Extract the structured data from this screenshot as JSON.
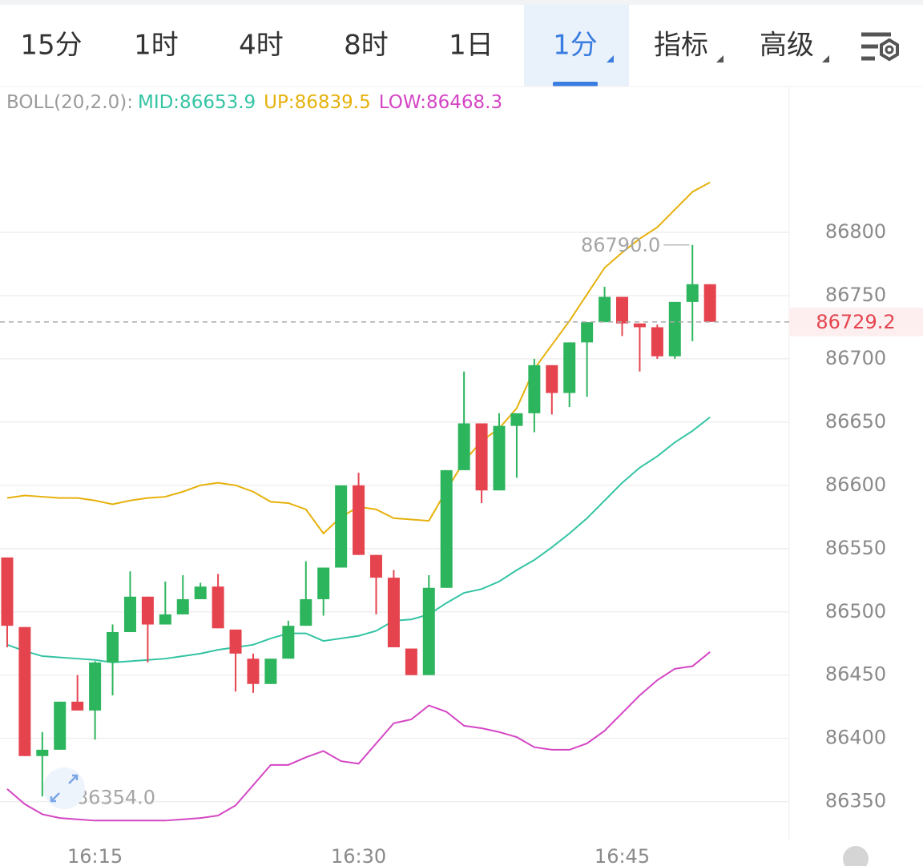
{
  "tabs": {
    "items": [
      "15分",
      "1时",
      "4时",
      "8时",
      "1日",
      "1分",
      "指标",
      "高级"
    ],
    "active": 5
  },
  "chart_data": {
    "type": "candlestick",
    "indicator_label": "BOLL(20,2.0):",
    "categories": [
      null,
      null,
      null,
      null,
      null,
      "16:15",
      null,
      null,
      null,
      null,
      null,
      null,
      null,
      null,
      null,
      null,
      null,
      null,
      null,
      null,
      "16:30",
      null,
      null,
      null,
      null,
      null,
      null,
      null,
      null,
      null,
      null,
      null,
      null,
      null,
      null,
      "16:45",
      null,
      null,
      null,
      null,
      null
    ],
    "open": [
      86543,
      86488,
      86386,
      86391,
      86429,
      86422,
      86460,
      86484,
      86512,
      86490,
      86498,
      86510,
      86520,
      86486,
      86463,
      86443,
      86463,
      86489,
      86510,
      86535,
      86600,
      86545,
      86527,
      86471,
      86450,
      86519,
      86612,
      86649,
      86596,
      86647,
      86657,
      86695,
      86673,
      86713,
      86729,
      86749,
      86728,
      86725,
      86702,
      86745,
      86759
    ],
    "high": [
      86543,
      86488,
      86405,
      86429,
      86450,
      86461,
      86490,
      86532,
      86512,
      86524,
      86529,
      86523,
      86530,
      86486,
      86467,
      86463,
      86493,
      86540,
      86535,
      86600,
      86610,
      86545,
      86533,
      86471,
      86529,
      86612,
      86690,
      86649,
      86657,
      86657,
      86700,
      86695,
      86713,
      86729,
      86757,
      86749,
      86728,
      86727,
      86745,
      86790,
      86759
    ],
    "low": [
      86472,
      86386,
      86354,
      86391,
      86422,
      86399,
      86434,
      86484,
      86460,
      86490,
      86498,
      86510,
      86487,
      86437,
      86436,
      86443,
      86463,
      86489,
      86497,
      86535,
      86545,
      86498,
      86472,
      86450,
      86450,
      86519,
      86612,
      86586,
      86596,
      86606,
      86642,
      86656,
      86662,
      86670,
      86729,
      86718,
      86690,
      86700,
      86700,
      86714,
      86729.2
    ],
    "close": [
      86489,
      86386,
      86391,
      86429,
      86422,
      86460,
      86484,
      86512,
      86490,
      86498,
      86510,
      86520,
      86487,
      86467,
      86443,
      86463,
      86489,
      86510,
      86535,
      86600,
      86545,
      86527,
      86472,
      86450,
      86519,
      86612,
      86649,
      86596,
      86647,
      86657,
      86695,
      86673,
      86713,
      86729,
      86749,
      86728,
      86725,
      86702,
      86745,
      86759,
      86729.2
    ],
    "up_color": "#2db55d",
    "down_color": "#e5444f",
    "series": [
      {
        "name": "MID:86653.9",
        "color": "#33c4a3",
        "values": [
          86474,
          86469,
          86465,
          86464,
          86463,
          86462,
          86460,
          86461,
          86462,
          86463,
          86465,
          86467,
          86470,
          86472,
          86474,
          86479,
          86483,
          86483,
          86477,
          86479,
          86481,
          86485,
          86493,
          86494,
          86498,
          86507,
          86515,
          86518,
          86524,
          86533,
          86541,
          86551,
          86562,
          86574,
          86588,
          86602,
          86614,
          86623,
          86634,
          86643,
          86653.9
        ]
      },
      {
        "name": "UP:86839.5",
        "color": "#e6b10c",
        "values": [
          86590,
          86592,
          86591,
          86590,
          86590,
          86588,
          86585,
          86588,
          86590,
          86591,
          86595,
          86600,
          86602,
          86600,
          86595,
          86587,
          86586,
          86581,
          86562,
          86575,
          86583,
          86581,
          86574,
          86573,
          86572,
          86596,
          86619,
          86635,
          86645,
          86661,
          86692,
          86711,
          86730,
          86751,
          86772,
          86784,
          86795,
          86804,
          86818,
          86832,
          86839.5
        ]
      },
      {
        "name": "LOW:86468.3",
        "color": "#d446c4",
        "values": [
          86360,
          86348,
          86340,
          86337,
          86336,
          86335,
          86335,
          86335,
          86335,
          86335,
          86336,
          86337,
          86339,
          86347,
          86363,
          86379,
          86379,
          86385,
          86390,
          86382,
          86380,
          86396,
          86412,
          86415,
          86426,
          86421,
          86410,
          86408,
          86405,
          86401,
          86393,
          86391,
          86391,
          86396,
          86406,
          86420,
          86434,
          86446,
          86455,
          86457,
          86468.3
        ]
      }
    ],
    "ylim": [
      86320,
      86914
    ],
    "yticks": [
      86350,
      86400,
      86450,
      86500,
      86550,
      86600,
      86650,
      86700,
      86750,
      86800
    ],
    "grid": true,
    "last_price": 86729.2,
    "annotations": [
      {
        "value": 86790,
        "label": "86790.0"
      },
      {
        "value": 86354,
        "label": "86354.0"
      }
    ]
  }
}
